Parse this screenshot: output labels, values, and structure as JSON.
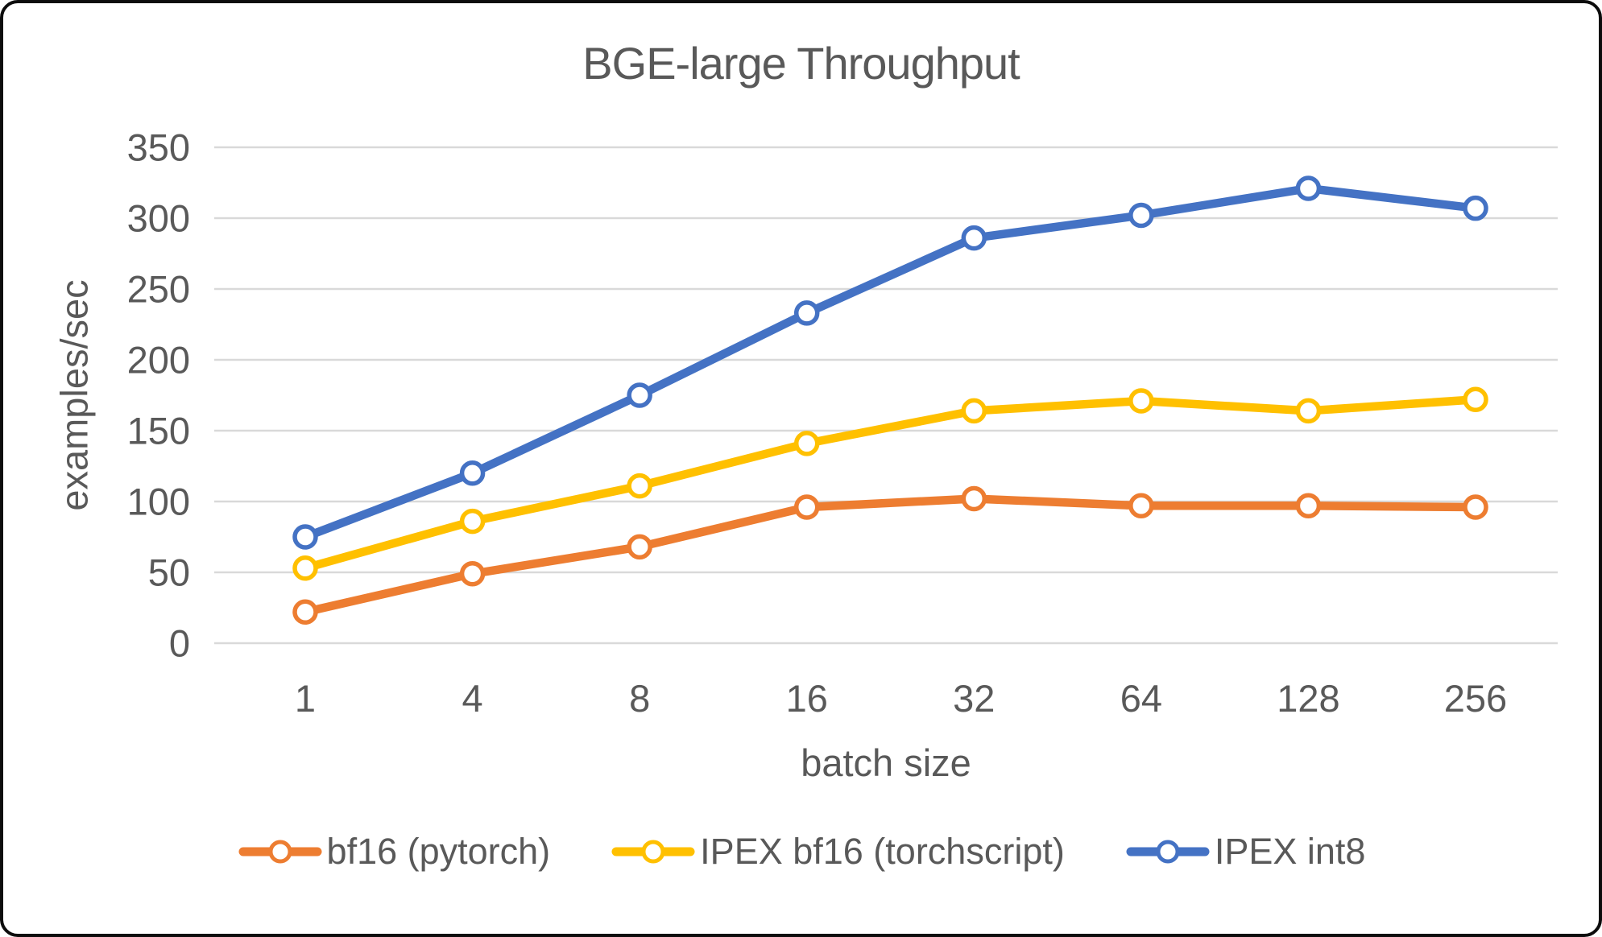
{
  "frame": {
    "background": "#FFFFFF",
    "border_color": "#0D0D0D"
  },
  "chart_data": {
    "type": "line",
    "title": "BGE-large Throughput",
    "xlabel": "batch size",
    "ylabel": "examples/sec",
    "categories": [
      "1",
      "4",
      "8",
      "16",
      "32",
      "64",
      "128",
      "256"
    ],
    "series": [
      {
        "name": "bf16 (pytorch)",
        "color": "#ED7D31",
        "values": [
          22,
          49,
          68,
          96,
          102,
          97,
          97,
          96
        ]
      },
      {
        "name": "IPEX bf16 (torchscript)",
        "color": "#FFC000",
        "values": [
          53,
          86,
          111,
          141,
          164,
          171,
          164,
          172
        ]
      },
      {
        "name": "IPEX int8",
        "color": "#4472C4",
        "values": [
          75,
          120,
          175,
          233,
          286,
          302,
          321,
          307
        ]
      }
    ],
    "ylim": [
      0,
      350
    ],
    "ytick_interval": 50,
    "yticks": [
      "0",
      "50",
      "100",
      "150",
      "200",
      "250",
      "300",
      "350"
    ],
    "grid": true,
    "legend_position": "bottom",
    "marker": "open-circle"
  },
  "colors": {
    "text": "#595959",
    "gridline": "#D9D9D9"
  }
}
